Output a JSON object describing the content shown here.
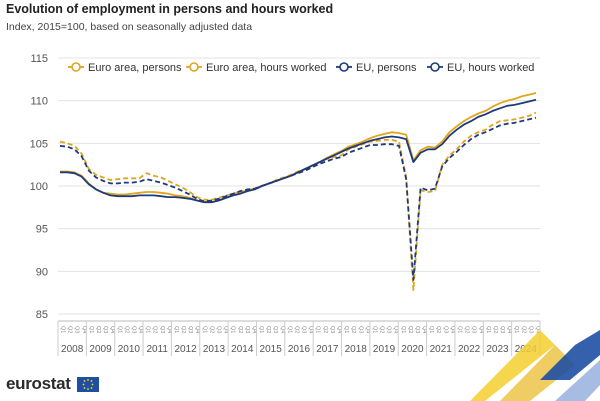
{
  "title": "Evolution of employment in persons and hours worked",
  "subtitle": "Index, 2015=100, based on seasonally adjusted data",
  "logo_text": "eurostat",
  "colors": {
    "euro_area": "#e0a61b",
    "eu": "#1e3a7b",
    "grid": "#e3e3e3",
    "axis_text": "#555555"
  },
  "chart_data": {
    "type": "line",
    "ylim": [
      85,
      115
    ],
    "yticks": [
      85,
      90,
      95,
      100,
      105,
      110,
      115
    ],
    "years": [
      "2008",
      "2009",
      "2010",
      "2011",
      "2012",
      "2013",
      "2014",
      "2015",
      "2016",
      "2017",
      "2018",
      "2019",
      "2020",
      "2021",
      "2022",
      "2023",
      "2024"
    ],
    "quarter_labels": [
      "Q1",
      "Q2",
      "Q3",
      "Q4"
    ],
    "grid": true,
    "legend_position": "top",
    "x": [
      "2008-Q1",
      "2008-Q2",
      "2008-Q3",
      "2008-Q4",
      "2009-Q1",
      "2009-Q2",
      "2009-Q3",
      "2009-Q4",
      "2010-Q1",
      "2010-Q2",
      "2010-Q3",
      "2010-Q4",
      "2011-Q1",
      "2011-Q2",
      "2011-Q3",
      "2011-Q4",
      "2012-Q1",
      "2012-Q2",
      "2012-Q3",
      "2012-Q4",
      "2013-Q1",
      "2013-Q2",
      "2013-Q3",
      "2013-Q4",
      "2014-Q1",
      "2014-Q2",
      "2014-Q3",
      "2014-Q4",
      "2015-Q1",
      "2015-Q2",
      "2015-Q3",
      "2015-Q4",
      "2016-Q1",
      "2016-Q2",
      "2016-Q3",
      "2016-Q4",
      "2017-Q1",
      "2017-Q2",
      "2017-Q3",
      "2017-Q4",
      "2018-Q1",
      "2018-Q2",
      "2018-Q3",
      "2018-Q4",
      "2019-Q1",
      "2019-Q2",
      "2019-Q3",
      "2019-Q4",
      "2020-Q1",
      "2020-Q2",
      "2020-Q3",
      "2020-Q4",
      "2021-Q1",
      "2021-Q2",
      "2021-Q3",
      "2021-Q4",
      "2022-Q1",
      "2022-Q2",
      "2022-Q3",
      "2022-Q4",
      "2023-Q1",
      "2023-Q2",
      "2023-Q3",
      "2023-Q4",
      "2024-Q1",
      "2024-Q2",
      "2024-Q3"
    ],
    "series": [
      {
        "name": "Euro area, persons",
        "color": "#e0a61b",
        "dash": false,
        "values": [
          101.7,
          101.7,
          101.6,
          101.2,
          100.3,
          99.6,
          99.2,
          99.1,
          99.0,
          99.0,
          99.1,
          99.2,
          99.3,
          99.3,
          99.2,
          99.1,
          98.9,
          98.8,
          98.6,
          98.3,
          98.1,
          98.1,
          98.3,
          98.6,
          98.9,
          99.2,
          99.5,
          99.7,
          100.0,
          100.3,
          100.6,
          100.9,
          101.2,
          101.6,
          102.0,
          102.4,
          102.8,
          103.3,
          103.7,
          104.1,
          104.6,
          104.9,
          105.2,
          105.6,
          105.9,
          106.1,
          106.3,
          106.2,
          106.0,
          103.0,
          104.2,
          104.6,
          104.5,
          105.2,
          106.3,
          107.0,
          107.6,
          108.1,
          108.5,
          108.8,
          109.3,
          109.7,
          110.0,
          110.2,
          110.5,
          110.7,
          110.9
        ]
      },
      {
        "name": "Euro area, hours worked",
        "color": "#e0a61b",
        "dash": true,
        "values": [
          105.2,
          105.0,
          104.7,
          103.8,
          102.0,
          101.3,
          101.0,
          100.7,
          100.8,
          100.9,
          100.9,
          100.9,
          101.5,
          101.2,
          101.0,
          100.6,
          100.2,
          99.8,
          99.3,
          98.7,
          98.4,
          98.4,
          98.6,
          98.9,
          99.1,
          99.3,
          99.5,
          99.7,
          100.0,
          100.3,
          100.7,
          101.0,
          101.3,
          101.7,
          102.0,
          102.4,
          102.8,
          103.2,
          103.4,
          103.6,
          104.3,
          104.6,
          104.9,
          105.2,
          105.3,
          105.4,
          105.4,
          105.2,
          101.0,
          87.8,
          99.5,
          99.3,
          99.4,
          102.5,
          103.6,
          104.3,
          105.2,
          105.9,
          106.3,
          106.6,
          107.2,
          107.6,
          107.7,
          107.8,
          108.0,
          108.2,
          108.6
        ]
      },
      {
        "name": "EU, persons",
        "color": "#1e3a7b",
        "dash": false,
        "values": [
          101.6,
          101.6,
          101.5,
          101.1,
          100.2,
          99.6,
          99.2,
          98.9,
          98.8,
          98.8,
          98.8,
          98.9,
          98.9,
          98.9,
          98.8,
          98.7,
          98.7,
          98.6,
          98.5,
          98.3,
          98.1,
          98.1,
          98.3,
          98.6,
          98.9,
          99.1,
          99.4,
          99.6,
          100.0,
          100.3,
          100.6,
          100.9,
          101.2,
          101.6,
          102.0,
          102.4,
          102.8,
          103.2,
          103.6,
          104.0,
          104.4,
          104.7,
          105.0,
          105.3,
          105.5,
          105.7,
          105.8,
          105.7,
          105.5,
          102.8,
          103.9,
          104.3,
          104.3,
          104.9,
          105.9,
          106.6,
          107.2,
          107.6,
          108.1,
          108.4,
          108.8,
          109.1,
          109.4,
          109.5,
          109.7,
          109.9,
          110.1
        ]
      },
      {
        "name": "EU, hours worked",
        "color": "#1e3a7b",
        "dash": true,
        "values": [
          104.7,
          104.6,
          104.3,
          103.5,
          101.8,
          101.0,
          100.6,
          100.3,
          100.3,
          100.4,
          100.4,
          100.5,
          100.8,
          100.6,
          100.4,
          100.1,
          99.8,
          99.4,
          99.0,
          98.5,
          98.2,
          98.3,
          98.5,
          98.8,
          99.1,
          99.4,
          99.6,
          99.7,
          100.0,
          100.3,
          100.6,
          100.9,
          101.2,
          101.5,
          101.8,
          102.2,
          102.6,
          102.9,
          103.2,
          103.4,
          103.9,
          104.2,
          104.5,
          104.8,
          104.8,
          104.9,
          104.9,
          104.7,
          100.8,
          89.0,
          99.8,
          99.5,
          99.7,
          102.3,
          103.3,
          104.0,
          104.8,
          105.5,
          106.0,
          106.3,
          106.7,
          107.1,
          107.3,
          107.4,
          107.6,
          107.8,
          108.0
        ]
      }
    ]
  }
}
